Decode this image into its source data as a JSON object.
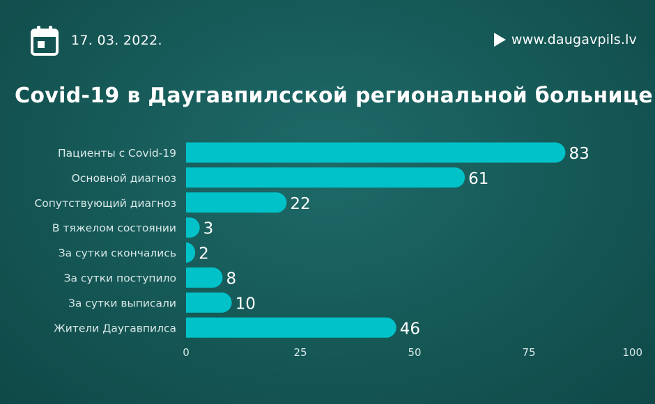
{
  "header": {
    "date": "17. 03. 2022.",
    "calendar_icon": "calendar-icon",
    "website": "www.daugavpils.lv",
    "website_icon": "play-icon"
  },
  "colors": {
    "background": "#155856",
    "bar": "#00c2c8",
    "text": "#ffffff",
    "axis_label": "#d9e8e8"
  },
  "chart_data": {
    "type": "bar",
    "orientation": "horizontal",
    "title": "Covid-19 в Даугавпилсской региональной больнице",
    "categories": [
      "Пациенты с Covid-19",
      "Основной диагноз",
      "Сопутствующий диагноз",
      "В тяжелом состоянии",
      "За сутки скончались",
      "За сутки поступило",
      "За сутки выписали",
      "Жители Даугавпилса"
    ],
    "values": [
      83,
      61,
      22,
      3,
      2,
      8,
      10,
      46
    ],
    "xlim": [
      0,
      100
    ],
    "xticks": [
      0,
      25,
      50,
      75,
      100
    ],
    "grid": false,
    "legend": "none"
  }
}
